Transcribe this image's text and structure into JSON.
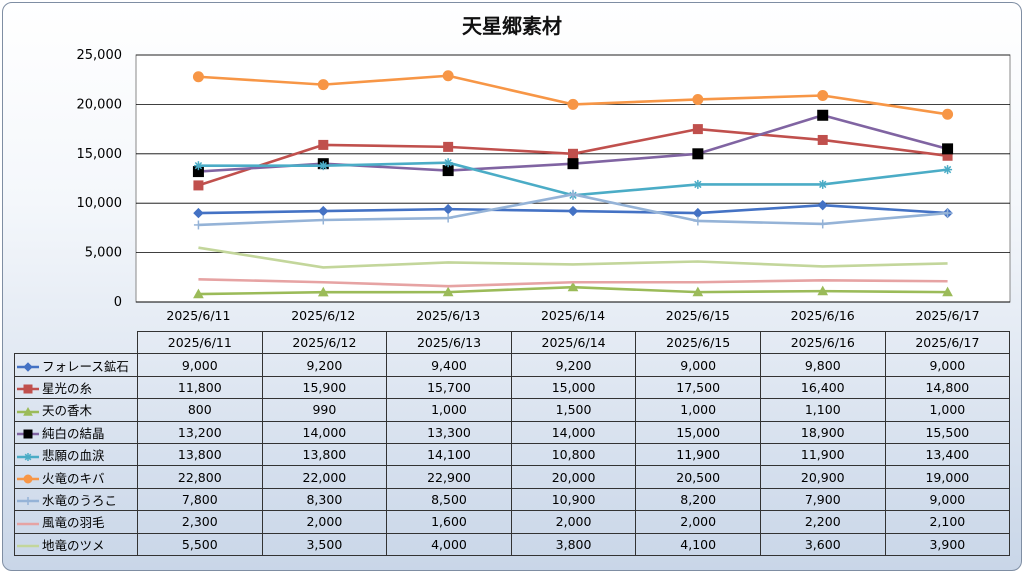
{
  "chart_data": {
    "type": "line",
    "title": "天星郷素材",
    "categories": [
      "2025/6/11",
      "2025/6/12",
      "2025/6/13",
      "2025/6/14",
      "2025/6/15",
      "2025/6/16",
      "2025/6/17"
    ],
    "ylim": [
      0,
      25000
    ],
    "yticks": [
      "0",
      "5,000",
      "10,000",
      "15,000",
      "20,000",
      "25,000"
    ],
    "ytick_values": [
      0,
      5000,
      10000,
      15000,
      20000,
      25000
    ],
    "grid": true,
    "legend": "data-table",
    "series": [
      {
        "name": "フォレース鉱石",
        "color": "#4472c4",
        "marker": "diamond",
        "values": [
          9000,
          9200,
          9400,
          9200,
          9000,
          9800,
          9000
        ],
        "labels": [
          "9,000",
          "9,200",
          "9,400",
          "9,200",
          "9,000",
          "9,800",
          "9,000"
        ]
      },
      {
        "name": "星光の糸",
        "color": "#c0504d",
        "marker": "square",
        "values": [
          11800,
          15900,
          15700,
          15000,
          17500,
          16400,
          14800
        ],
        "labels": [
          "11,800",
          "15,900",
          "15,700",
          "15,000",
          "17,500",
          "16,400",
          "14,800"
        ]
      },
      {
        "name": "天の香木",
        "color": "#9bbb59",
        "marker": "triangle",
        "values": [
          800,
          990,
          1000,
          1500,
          1000,
          1100,
          1000
        ],
        "labels": [
          "800",
          "990",
          "1,000",
          "1,500",
          "1,000",
          "1,100",
          "1,000"
        ]
      },
      {
        "name": "純白の結晶",
        "color": "#8064a2",
        "marker": "blacksquare",
        "values": [
          13200,
          14000,
          13300,
          14000,
          15000,
          18900,
          15500
        ],
        "labels": [
          "13,200",
          "14,000",
          "13,300",
          "14,000",
          "15,000",
          "18,900",
          "15,500"
        ]
      },
      {
        "name": "悲願の血涙",
        "color": "#4bacc6",
        "marker": "star",
        "values": [
          13800,
          13800,
          14100,
          10800,
          11900,
          11900,
          13400
        ],
        "labels": [
          "13,800",
          "13,800",
          "14,100",
          "10,800",
          "11,900",
          "11,900",
          "13,400"
        ]
      },
      {
        "name": "火竜のキバ",
        "color": "#f79646",
        "marker": "circle",
        "values": [
          22800,
          22000,
          22900,
          20000,
          20500,
          20900,
          19000
        ],
        "labels": [
          "22,800",
          "22,000",
          "22,900",
          "20,000",
          "20,500",
          "20,900",
          "19,000"
        ]
      },
      {
        "name": "水竜のうろこ",
        "color": "#95b3d7",
        "marker": "plus",
        "values": [
          7800,
          8300,
          8500,
          10900,
          8200,
          7900,
          9000
        ],
        "labels": [
          "7,800",
          "8,300",
          "8,500",
          "10,900",
          "8,200",
          "7,900",
          "9,000"
        ]
      },
      {
        "name": "風竜の羽毛",
        "color": "#e6a3a3",
        "marker": "none",
        "values": [
          2300,
          2000,
          1600,
          2000,
          2000,
          2200,
          2100
        ],
        "labels": [
          "2,300",
          "2,000",
          "1,600",
          "2,000",
          "2,000",
          "2,200",
          "2,100"
        ]
      },
      {
        "name": "地竜のツメ",
        "color": "#c3d69b",
        "marker": "none",
        "values": [
          5500,
          3500,
          4000,
          3800,
          4100,
          3600,
          3900
        ],
        "labels": [
          "5,500",
          "3,500",
          "4,000",
          "3,800",
          "4,100",
          "3,600",
          "3,900"
        ]
      }
    ]
  }
}
